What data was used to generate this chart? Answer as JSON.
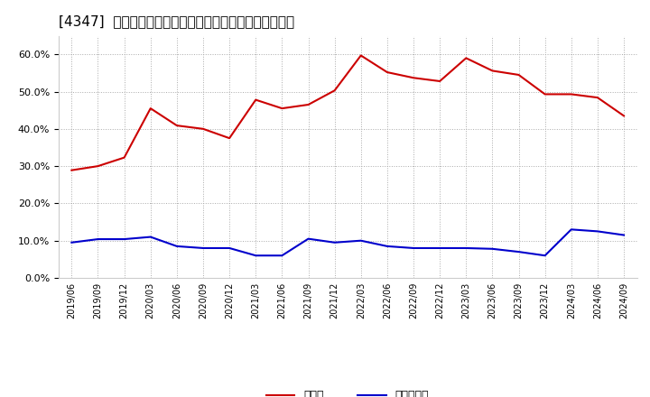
{
  "title": "[4347]  現預金、有利子負債の総資産に対する比率の推移",
  "x_labels": [
    "2019/06",
    "2019/09",
    "2019/12",
    "2020/03",
    "2020/06",
    "2020/09",
    "2020/12",
    "2021/03",
    "2021/06",
    "2021/09",
    "2021/12",
    "2022/03",
    "2022/06",
    "2022/09",
    "2022/12",
    "2023/03",
    "2023/06",
    "2023/09",
    "2023/12",
    "2024/03",
    "2024/06",
    "2024/09"
  ],
  "cash": [
    0.289,
    0.3,
    0.323,
    0.455,
    0.409,
    0.4,
    0.375,
    0.478,
    0.455,
    0.465,
    0.503,
    0.597,
    0.552,
    0.537,
    0.528,
    0.59,
    0.556,
    0.545,
    0.493,
    0.493,
    0.484,
    0.435
  ],
  "debt": [
    0.095,
    0.104,
    0.104,
    0.11,
    0.085,
    0.08,
    0.08,
    0.06,
    0.06,
    0.105,
    0.095,
    0.1,
    0.085,
    0.08,
    0.08,
    0.08,
    0.078,
    0.07,
    0.06,
    0.13,
    0.125,
    0.115
  ],
  "cash_color": "#cc0000",
  "debt_color": "#0000cc",
  "ylim": [
    0.0,
    0.65
  ],
  "yticks": [
    0.0,
    0.1,
    0.2,
    0.3,
    0.4,
    0.5,
    0.6
  ],
  "legend_cash": "現預金",
  "legend_debt": "有利子負債",
  "bg_color": "#ffffff",
  "grid_color": "#aaaaaa",
  "title_fontsize": 11
}
